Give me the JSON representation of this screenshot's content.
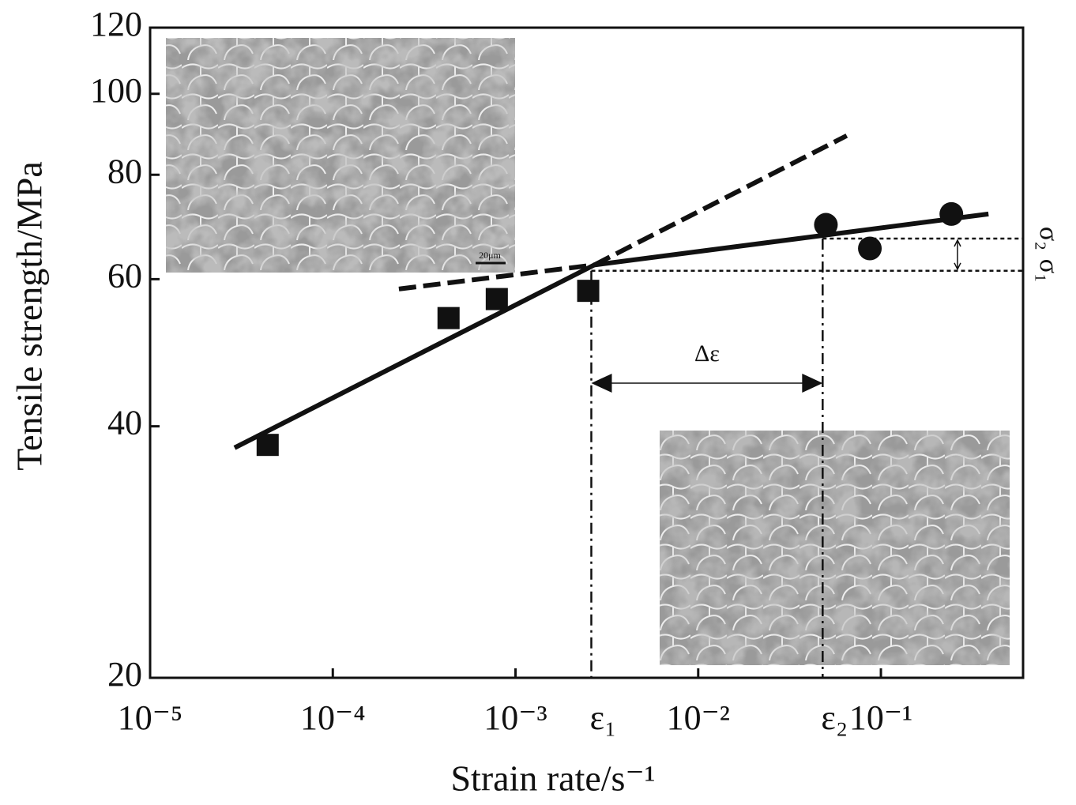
{
  "chart_data": {
    "type": "scatter",
    "x_label": "Strain rate/s⁻¹",
    "y_label": "Tensile strength/MPa",
    "xscale": "log",
    "yscale": "log",
    "xlim": [
      1e-05,
      0.6
    ],
    "ylim": [
      20,
      120
    ],
    "xticks": [
      {
        "value": 1e-05,
        "label": "10⁻⁵"
      },
      {
        "value": 0.0001,
        "label": "10⁻⁴"
      },
      {
        "value": 0.001,
        "label": "10⁻³"
      },
      {
        "value": 0.01,
        "label": "10⁻²"
      },
      {
        "value": 0.1,
        "label": "10⁻¹"
      }
    ],
    "yticks": [
      20,
      40,
      60,
      80,
      100,
      120
    ],
    "series": [
      {
        "marker": "square",
        "color": "#111111",
        "x": [
          4.4e-05,
          0.00043,
          0.00079,
          0.0025
        ],
        "values": [
          38.0,
          53.9,
          56.8,
          58.1
        ]
      },
      {
        "marker": "circle",
        "color": "#111111",
        "x": [
          0.05,
          0.087,
          0.243
        ],
        "values": [
          69.7,
          65.3,
          71.8
        ]
      }
    ],
    "fit_lines": [
      {
        "style": "solid",
        "x": [
          2.9e-05,
          0.0027,
          0.388
        ],
        "values": [
          37.7,
          62.4,
          71.8
        ]
      },
      {
        "style": "dashed",
        "x": [
          0.0027,
          0.065
        ],
        "values": [
          62.4,
          89.1
        ]
      },
      {
        "style": "dashed",
        "x": [
          0.00023,
          0.0027
        ],
        "values": [
          58.4,
          62.4
        ]
      }
    ],
    "levels": [
      {
        "x": 0.0026,
        "y": 61.4,
        "x_label": "ε₁",
        "y_label": "σ₁"
      },
      {
        "x": 0.048,
        "y": 67.1,
        "x_label": "ε₂",
        "y_label": "σ₂"
      }
    ],
    "interval_label": "Δε",
    "scale_bar_label": "20μm"
  }
}
